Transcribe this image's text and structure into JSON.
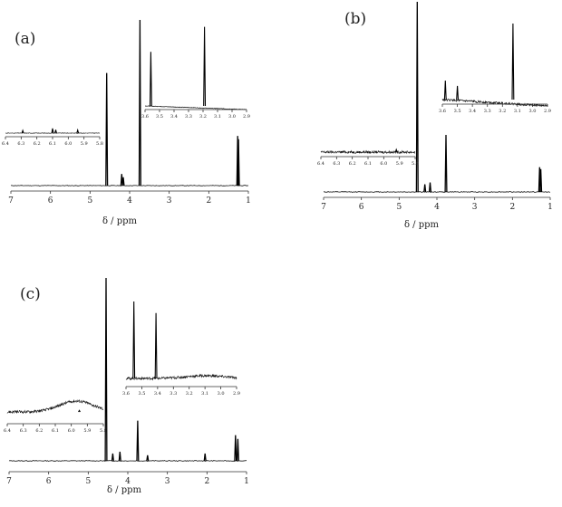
{
  "chart_data": [
    {
      "type": "line",
      "panel_label": "(a)",
      "xlabel": "δ / ppm",
      "xlim": [
        7,
        1
      ],
      "x_ticks": [
        "7",
        "6",
        "5",
        "4",
        "3",
        "2",
        "1"
      ],
      "peaks": [
        {
          "ppm": 4.58,
          "height": 0.68
        },
        {
          "ppm": 4.2,
          "height": 0.07
        },
        {
          "ppm": 4.16,
          "height": 0.05
        },
        {
          "ppm": 3.74,
          "height": 1.0
        },
        {
          "ppm": 1.27,
          "height": 0.3
        },
        {
          "ppm": 1.25,
          "height": 0.28
        }
      ],
      "insets": [
        {
          "xlim": [
            6.4,
            5.8
          ],
          "x_ticks": [
            "6.4",
            "6.3",
            "6.2",
            "6.1",
            "6.0",
            "5.9",
            "5.8"
          ],
          "peaks": [
            {
              "ppm": 6.29,
              "height": 0.35
            },
            {
              "ppm": 6.1,
              "height": 0.65
            },
            {
              "ppm": 6.08,
              "height": 0.45
            },
            {
              "ppm": 5.94,
              "height": 0.4
            }
          ]
        },
        {
          "xlim": [
            3.6,
            2.9
          ],
          "x_ticks": [
            "3.6",
            "3.5",
            "3.4",
            "3.3",
            "3.2",
            "3.1",
            "3.0",
            "2.9"
          ],
          "peaks": [
            {
              "ppm": 3.56,
              "height": 0.65
            },
            {
              "ppm": 3.19,
              "height": 0.95
            }
          ]
        }
      ]
    },
    {
      "type": "line",
      "panel_label": "(b)",
      "xlabel": "δ / ppm",
      "xlim": [
        7,
        1
      ],
      "x_ticks": [
        "7",
        "6",
        "5",
        "4",
        "3",
        "2",
        "1"
      ],
      "peaks": [
        {
          "ppm": 4.52,
          "height": 1.0
        },
        {
          "ppm": 4.32,
          "height": 0.04
        },
        {
          "ppm": 4.18,
          "height": 0.05
        },
        {
          "ppm": 3.76,
          "height": 0.3
        },
        {
          "ppm": 1.28,
          "height": 0.13
        },
        {
          "ppm": 1.25,
          "height": 0.12
        }
      ],
      "insets": [
        {
          "xlim": [
            6.4,
            5.8
          ],
          "x_ticks": [
            "6.4",
            "6.3",
            "6.2",
            "6.1",
            "6.0",
            "5.9",
            "5.8"
          ],
          "peaks": [
            {
              "ppm": 5.92,
              "height": 0.3
            }
          ]
        },
        {
          "xlim": [
            3.6,
            2.9
          ],
          "x_ticks": [
            "3.6",
            "3.5",
            "3.4",
            "3.3",
            "3.2",
            "3.1",
            "3.0",
            "2.9"
          ],
          "peaks": [
            {
              "ppm": 3.58,
              "height": 0.25
            },
            {
              "ppm": 3.5,
              "height": 0.18
            },
            {
              "ppm": 3.13,
              "height": 1.0
            }
          ]
        }
      ]
    },
    {
      "type": "line",
      "panel_label": "(c)",
      "xlabel": "δ / ppm",
      "xlim": [
        7,
        1
      ],
      "x_ticks": [
        "7",
        "6",
        "5",
        "4",
        "3",
        "2",
        "1"
      ],
      "peaks": [
        {
          "ppm": 4.55,
          "height": 1.0
        },
        {
          "ppm": 4.38,
          "height": 0.04
        },
        {
          "ppm": 4.2,
          "height": 0.05
        },
        {
          "ppm": 3.75,
          "height": 0.22
        },
        {
          "ppm": 3.5,
          "height": 0.03
        },
        {
          "ppm": 2.05,
          "height": 0.04
        },
        {
          "ppm": 1.28,
          "height": 0.14
        },
        {
          "ppm": 1.22,
          "height": 0.12
        }
      ],
      "insets": [
        {
          "xlim": [
            6.4,
            5.8
          ],
          "x_ticks": [
            "6.4",
            "6.3",
            "6.2",
            "6.1",
            "6.0",
            "5.9",
            "5.8"
          ],
          "peaks": [
            {
              "ppm": 5.95,
              "height": 0.2
            }
          ]
        },
        {
          "xlim": [
            3.6,
            2.9
          ],
          "x_ticks": [
            "3.6",
            "3.5",
            "3.4",
            "3.3",
            "3.2",
            "3.1",
            "3.0",
            "2.9"
          ],
          "peaks": [
            {
              "ppm": 3.55,
              "height": 1.0
            },
            {
              "ppm": 3.41,
              "height": 0.85
            }
          ]
        }
      ]
    }
  ]
}
